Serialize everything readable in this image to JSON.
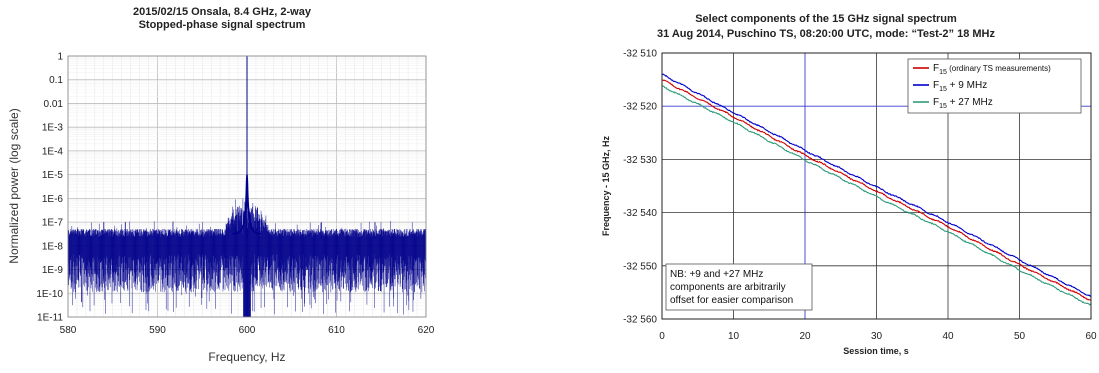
{
  "chart_data": [
    {
      "type": "line",
      "title": "2015/02/15 Onsala, 8.4 GHz, 2-way",
      "subtitle": "Stopped-phase signal spectrum",
      "xlabel": "Frequency, Hz",
      "ylabel": "Normalized power (log scale)",
      "xlim": [
        580,
        620
      ],
      "ylim": [
        1e-11,
        1
      ],
      "yscale": "log",
      "x_ticks": [
        "580",
        "590",
        "600",
        "610",
        "620"
      ],
      "y_ticks": [
        "1E-11",
        "1E-10",
        "1E-9",
        "1E-8",
        "1E-7",
        "1E-6",
        "1E-5",
        "1E-4",
        "1E-3",
        "0.01",
        "0.1",
        "1"
      ],
      "grid": true,
      "series_color": "#00008b",
      "peaks": [
        {
          "x": 600.0,
          "y": 1
        },
        {
          "x": 584.0,
          "y": 1e-07
        },
        {
          "x": 586.4,
          "y": 1e-07
        },
        {
          "x": 608.3,
          "y": 1e-07
        },
        {
          "x": 614.3,
          "y": 1e-07
        }
      ],
      "noise_floor": {
        "upper": 4e-08,
        "lower": 2e-09
      }
    },
    {
      "type": "line",
      "title": "Select components of the 15 GHz signal spectrum",
      "subtitle": "31 Aug 2014, Puschino TS, 08:20:00 UTC, mode: “Test-2” 18 MHz",
      "xlabel": "Session time, s",
      "ylabel": "Frequency - 15 GHz, Hz",
      "xlim": [
        0,
        60
      ],
      "ylim": [
        -32560,
        -32510
      ],
      "x_ticks": [
        "0",
        "10",
        "20",
        "30",
        "40",
        "50",
        "60"
      ],
      "y_ticks": [
        "-32 510",
        "-32 520",
        "-32 530",
        "-32 540",
        "-32 550",
        "-32 560"
      ],
      "grid": true,
      "legend_position": "top-right",
      "series": [
        {
          "name_main": "F",
          "name_sub": "15",
          "name_rest": " (ordinary TS measurements)",
          "color": "#cc0000",
          "points": [
            [
              0,
              -32515.0
            ],
            [
              10,
              -32522.0
            ],
            [
              20,
              -32529.2
            ],
            [
              30,
              -32536.0
            ],
            [
              40,
              -32542.6
            ],
            [
              50,
              -32549.8
            ],
            [
              60,
              -32556.5
            ]
          ]
        },
        {
          "name_main": "F",
          "name_sub": "15",
          "name_rest": " + 9 MHz",
          "color": "#0000cc",
          "points": [
            [
              0,
              -32514.0
            ],
            [
              10,
              -32521.2
            ],
            [
              20,
              -32528.3
            ],
            [
              30,
              -32535.2
            ],
            [
              40,
              -32541.8
            ],
            [
              50,
              -32548.9
            ],
            [
              60,
              -32555.8
            ]
          ]
        },
        {
          "name_main": "F",
          "name_sub": "15",
          "name_rest": " + 27 MHz",
          "color": "#2e9c7a",
          "points": [
            [
              0,
              -32516.2
            ],
            [
              10,
              -32523.0
            ],
            [
              20,
              -32530.1
            ],
            [
              30,
              -32537.0
            ],
            [
              40,
              -32543.6
            ],
            [
              50,
              -32550.8
            ],
            [
              60,
              -32557.5
            ]
          ]
        }
      ],
      "note": [
        "NB: +9 and +27 MHz",
        "components are arbitrarily",
        "offset for easier comparison"
      ]
    }
  ]
}
